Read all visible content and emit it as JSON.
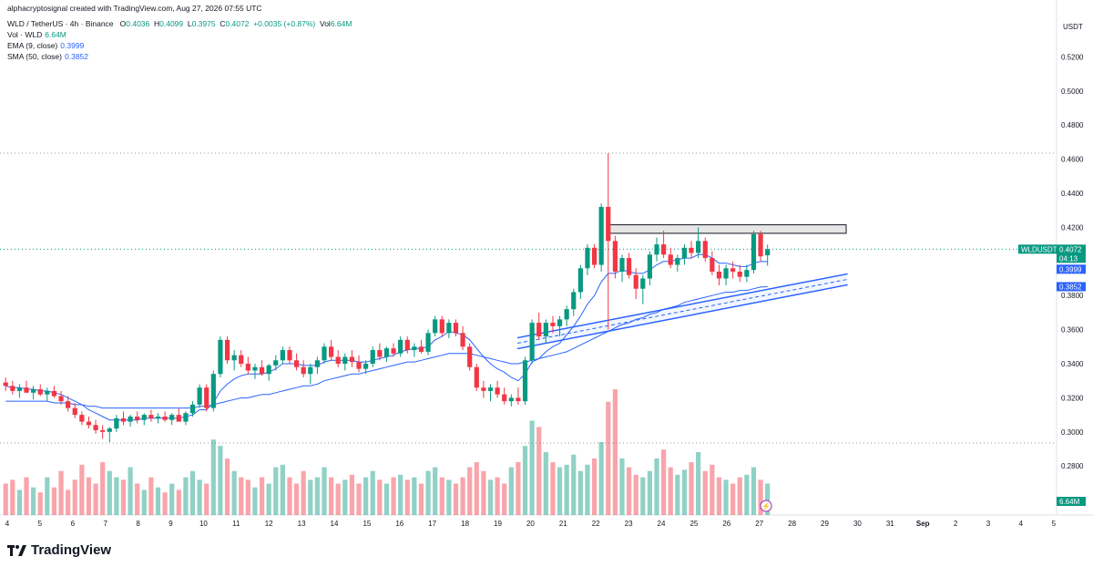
{
  "header": {
    "credit": "alphacryptosignal created with TradingView.com, Aug 27, 2026 07:55 UTC",
    "symbol": "WLD / TetherUS · 4h · Binance",
    "o_label": "O",
    "o": "0.4036",
    "h_label": "H",
    "h": "0.4099",
    "l_label": "L",
    "l": "0.3975",
    "c_label": "C",
    "c": "0.4072",
    "change": "+0.0035 (+0.87%)",
    "vol_label": "Vol",
    "vol": "6.64M",
    "vol_line_label": "Vol · WLD",
    "vol_line_value": "6.64M",
    "ema_label": "EMA (9, close)",
    "ema_value": "0.3999",
    "sma_label": "SMA (50, close)",
    "sma_value": "0.3852"
  },
  "brand": {
    "name": "TradingView"
  },
  "chart_data": {
    "type": "candlestick",
    "symbol": "WLDUSDT",
    "currency": "USDT",
    "y_ticks": [
      "0.5200",
      "0.5000",
      "0.4800",
      "0.4600",
      "0.4400",
      "0.4200",
      "0.3800",
      "0.3600",
      "0.3400",
      "0.3200",
      "0.3000",
      "0.2800"
    ],
    "ylim": [
      0.27,
      0.53
    ],
    "x_ticks": [
      "4",
      "5",
      "6",
      "7",
      "8",
      "9",
      "10",
      "11",
      "12",
      "13",
      "14",
      "15",
      "16",
      "17",
      "18",
      "19",
      "20",
      "21",
      "22",
      "23",
      "24",
      "25",
      "26",
      "27",
      "28",
      "29",
      "30",
      "31",
      "Sep",
      "2",
      "3",
      "4",
      "5"
    ],
    "price_badges": {
      "last": {
        "symbol": "WLDUSDT",
        "value": "0.4072",
        "countdown": "04:13"
      },
      "ema": {
        "value": "0.3999"
      },
      "sma": {
        "value": "0.3852"
      },
      "volume": {
        "value": "6.64M"
      }
    },
    "horizontal_levels": [
      0.4635,
      0.2935,
      0.4072
    ],
    "resistance_zone": [
      0.4165,
      0.4215
    ],
    "trend_channel": {
      "start_day": 19.6,
      "end_day": 29.7,
      "start_price": 0.352,
      "end_price": 0.3895
    },
    "candles": [
      [
        0.329,
        0.332,
        0.324,
        0.327
      ],
      [
        0.327,
        0.33,
        0.322,
        0.324
      ],
      [
        0.324,
        0.328,
        0.32,
        0.326
      ],
      [
        0.326,
        0.33,
        0.323,
        0.323
      ],
      [
        0.323,
        0.327,
        0.319,
        0.325
      ],
      [
        0.325,
        0.328,
        0.321,
        0.322
      ],
      [
        0.322,
        0.326,
        0.318,
        0.324
      ],
      [
        0.324,
        0.327,
        0.32,
        0.321
      ],
      [
        0.321,
        0.324,
        0.316,
        0.318
      ],
      [
        0.318,
        0.321,
        0.312,
        0.314
      ],
      [
        0.314,
        0.317,
        0.308,
        0.31
      ],
      [
        0.31,
        0.312,
        0.304,
        0.306
      ],
      [
        0.306,
        0.309,
        0.302,
        0.304
      ],
      [
        0.304,
        0.307,
        0.299,
        0.301
      ],
      [
        0.301,
        0.304,
        0.296,
        0.3
      ],
      [
        0.3,
        0.303,
        0.294,
        0.302
      ],
      [
        0.302,
        0.31,
        0.3,
        0.308
      ],
      [
        0.308,
        0.312,
        0.304,
        0.306
      ],
      [
        0.306,
        0.31,
        0.303,
        0.309
      ],
      [
        0.309,
        0.312,
        0.305,
        0.307
      ],
      [
        0.307,
        0.311,
        0.304,
        0.31
      ],
      [
        0.31,
        0.313,
        0.306,
        0.308
      ],
      [
        0.308,
        0.311,
        0.305,
        0.309
      ],
      [
        0.309,
        0.312,
        0.306,
        0.307
      ],
      [
        0.307,
        0.311,
        0.304,
        0.31
      ],
      [
        0.31,
        0.314,
        0.307,
        0.306
      ],
      [
        0.306,
        0.312,
        0.304,
        0.311
      ],
      [
        0.311,
        0.318,
        0.309,
        0.316
      ],
      [
        0.316,
        0.328,
        0.314,
        0.326
      ],
      [
        0.326,
        0.328,
        0.312,
        0.314
      ],
      [
        0.314,
        0.336,
        0.312,
        0.334
      ],
      [
        0.334,
        0.356,
        0.332,
        0.354
      ],
      [
        0.354,
        0.356,
        0.34,
        0.342
      ],
      [
        0.342,
        0.348,
        0.336,
        0.345
      ],
      [
        0.345,
        0.348,
        0.338,
        0.34
      ],
      [
        0.34,
        0.344,
        0.334,
        0.336
      ],
      [
        0.336,
        0.34,
        0.331,
        0.338
      ],
      [
        0.338,
        0.342,
        0.333,
        0.334
      ],
      [
        0.334,
        0.34,
        0.33,
        0.339
      ],
      [
        0.339,
        0.345,
        0.336,
        0.342
      ],
      [
        0.342,
        0.35,
        0.34,
        0.348
      ],
      [
        0.348,
        0.35,
        0.34,
        0.342
      ],
      [
        0.342,
        0.346,
        0.336,
        0.338
      ],
      [
        0.338,
        0.342,
        0.332,
        0.334
      ],
      [
        0.334,
        0.34,
        0.328,
        0.338
      ],
      [
        0.338,
        0.344,
        0.334,
        0.342
      ],
      [
        0.342,
        0.352,
        0.34,
        0.35
      ],
      [
        0.35,
        0.354,
        0.342,
        0.344
      ],
      [
        0.344,
        0.348,
        0.338,
        0.34
      ],
      [
        0.34,
        0.346,
        0.336,
        0.344
      ],
      [
        0.344,
        0.348,
        0.338,
        0.341
      ],
      [
        0.341,
        0.345,
        0.335,
        0.337
      ],
      [
        0.337,
        0.342,
        0.334,
        0.34
      ],
      [
        0.34,
        0.35,
        0.338,
        0.348
      ],
      [
        0.348,
        0.352,
        0.342,
        0.344
      ],
      [
        0.344,
        0.35,
        0.341,
        0.349
      ],
      [
        0.349,
        0.352,
        0.344,
        0.346
      ],
      [
        0.346,
        0.356,
        0.344,
        0.354
      ],
      [
        0.354,
        0.356,
        0.346,
        0.348
      ],
      [
        0.348,
        0.352,
        0.344,
        0.35
      ],
      [
        0.35,
        0.354,
        0.346,
        0.347
      ],
      [
        0.347,
        0.36,
        0.345,
        0.358
      ],
      [
        0.358,
        0.368,
        0.356,
        0.366
      ],
      [
        0.366,
        0.368,
        0.356,
        0.358
      ],
      [
        0.358,
        0.366,
        0.355,
        0.364
      ],
      [
        0.364,
        0.366,
        0.356,
        0.358
      ],
      [
        0.358,
        0.362,
        0.348,
        0.35
      ],
      [
        0.35,
        0.352,
        0.336,
        0.338
      ],
      [
        0.338,
        0.34,
        0.324,
        0.326
      ],
      [
        0.326,
        0.33,
        0.32,
        0.324
      ],
      [
        0.324,
        0.328,
        0.318,
        0.326
      ],
      [
        0.326,
        0.33,
        0.32,
        0.322
      ],
      [
        0.322,
        0.326,
        0.316,
        0.318
      ],
      [
        0.318,
        0.322,
        0.315,
        0.32
      ],
      [
        0.32,
        0.326,
        0.316,
        0.318
      ],
      [
        0.318,
        0.344,
        0.316,
        0.342
      ],
      [
        0.342,
        0.366,
        0.34,
        0.364
      ],
      [
        0.364,
        0.37,
        0.354,
        0.356
      ],
      [
        0.356,
        0.366,
        0.352,
        0.364
      ],
      [
        0.364,
        0.368,
        0.358,
        0.362
      ],
      [
        0.362,
        0.368,
        0.356,
        0.366
      ],
      [
        0.366,
        0.374,
        0.362,
        0.372
      ],
      [
        0.372,
        0.384,
        0.368,
        0.382
      ],
      [
        0.382,
        0.398,
        0.378,
        0.396
      ],
      [
        0.396,
        0.41,
        0.392,
        0.408
      ],
      [
        0.408,
        0.41,
        0.396,
        0.398
      ],
      [
        0.398,
        0.434,
        0.394,
        0.432
      ],
      [
        0.432,
        0.4635,
        0.36,
        0.412
      ],
      [
        0.412,
        0.415,
        0.39,
        0.394
      ],
      [
        0.394,
        0.404,
        0.388,
        0.402
      ],
      [
        0.402,
        0.405,
        0.39,
        0.392
      ],
      [
        0.392,
        0.396,
        0.378,
        0.384
      ],
      [
        0.384,
        0.392,
        0.375,
        0.39
      ],
      [
        0.39,
        0.406,
        0.386,
        0.404
      ],
      [
        0.404,
        0.414,
        0.4,
        0.41
      ],
      [
        0.41,
        0.418,
        0.402,
        0.404
      ],
      [
        0.404,
        0.408,
        0.396,
        0.398
      ],
      [
        0.398,
        0.404,
        0.394,
        0.402
      ],
      [
        0.402,
        0.41,
        0.398,
        0.408
      ],
      [
        0.408,
        0.412,
        0.402,
        0.405
      ],
      [
        0.405,
        0.42,
        0.402,
        0.412
      ],
      [
        0.412,
        0.414,
        0.4,
        0.402
      ],
      [
        0.402,
        0.406,
        0.392,
        0.394
      ],
      [
        0.394,
        0.398,
        0.386,
        0.39
      ],
      [
        0.39,
        0.398,
        0.386,
        0.396
      ],
      [
        0.396,
        0.4,
        0.39,
        0.394
      ],
      [
        0.394,
        0.398,
        0.388,
        0.391
      ],
      [
        0.391,
        0.398,
        0.388,
        0.395
      ],
      [
        0.395,
        0.418,
        0.393,
        0.416
      ],
      [
        0.416,
        0.418,
        0.4,
        0.403
      ],
      [
        0.4036,
        0.4099,
        0.3975,
        0.4072
      ]
    ],
    "ema_9": [
      0.327,
      0.326,
      0.326,
      0.325,
      0.325,
      0.324,
      0.324,
      0.323,
      0.322,
      0.32,
      0.318,
      0.316,
      0.313,
      0.311,
      0.309,
      0.307,
      0.307,
      0.307,
      0.307,
      0.307,
      0.308,
      0.308,
      0.308,
      0.308,
      0.308,
      0.308,
      0.309,
      0.31,
      0.313,
      0.313,
      0.317,
      0.324,
      0.328,
      0.331,
      0.333,
      0.334,
      0.334,
      0.334,
      0.335,
      0.337,
      0.34,
      0.34,
      0.34,
      0.339,
      0.339,
      0.339,
      0.341,
      0.342,
      0.342,
      0.342,
      0.342,
      0.341,
      0.341,
      0.342,
      0.343,
      0.344,
      0.345,
      0.347,
      0.348,
      0.349,
      0.349,
      0.35,
      0.354,
      0.356,
      0.359,
      0.358,
      0.357,
      0.354,
      0.349,
      0.344,
      0.34,
      0.337,
      0.335,
      0.332,
      0.33,
      0.334,
      0.341,
      0.343,
      0.347,
      0.35,
      0.352,
      0.357,
      0.362,
      0.368,
      0.375,
      0.38,
      0.388,
      0.393,
      0.393,
      0.395,
      0.394,
      0.393,
      0.393,
      0.395,
      0.398,
      0.4,
      0.4,
      0.401,
      0.402,
      0.402,
      0.404,
      0.404,
      0.402,
      0.399,
      0.399,
      0.398,
      0.397,
      0.397,
      0.399,
      0.4,
      0.3999
    ],
    "sma_50": [
      0.318,
      0.318,
      0.318,
      0.318,
      0.318,
      0.318,
      0.318,
      0.317,
      0.317,
      0.317,
      0.316,
      0.316,
      0.315,
      0.315,
      0.314,
      0.314,
      0.314,
      0.314,
      0.314,
      0.314,
      0.314,
      0.314,
      0.314,
      0.314,
      0.314,
      0.314,
      0.314,
      0.314,
      0.315,
      0.315,
      0.316,
      0.317,
      0.318,
      0.319,
      0.32,
      0.32,
      0.321,
      0.322,
      0.322,
      0.323,
      0.324,
      0.325,
      0.326,
      0.327,
      0.327,
      0.328,
      0.33,
      0.331,
      0.332,
      0.333,
      0.334,
      0.334,
      0.335,
      0.336,
      0.337,
      0.338,
      0.339,
      0.34,
      0.341,
      0.341,
      0.342,
      0.343,
      0.344,
      0.345,
      0.346,
      0.346,
      0.346,
      0.346,
      0.345,
      0.344,
      0.343,
      0.342,
      0.341,
      0.34,
      0.34,
      0.341,
      0.342,
      0.343,
      0.344,
      0.345,
      0.346,
      0.347,
      0.349,
      0.351,
      0.353,
      0.355,
      0.357,
      0.359,
      0.361,
      0.363,
      0.364,
      0.366,
      0.367,
      0.369,
      0.37,
      0.372,
      0.373,
      0.374,
      0.376,
      0.377,
      0.378,
      0.379,
      0.38,
      0.381,
      0.382,
      0.382,
      0.383,
      0.383,
      0.384,
      0.385,
      0.3852
    ],
    "volume_rel": [
      0.25,
      0.28,
      0.2,
      0.3,
      0.22,
      0.18,
      0.3,
      0.22,
      0.35,
      0.2,
      0.28,
      0.4,
      0.3,
      0.25,
      0.42,
      0.35,
      0.3,
      0.28,
      0.38,
      0.25,
      0.2,
      0.3,
      0.22,
      0.18,
      0.25,
      0.2,
      0.3,
      0.35,
      0.28,
      0.25,
      0.6,
      0.55,
      0.45,
      0.35,
      0.3,
      0.28,
      0.22,
      0.3,
      0.25,
      0.38,
      0.4,
      0.3,
      0.25,
      0.35,
      0.28,
      0.3,
      0.38,
      0.3,
      0.25,
      0.28,
      0.32,
      0.25,
      0.3,
      0.35,
      0.28,
      0.25,
      0.3,
      0.32,
      0.28,
      0.3,
      0.25,
      0.35,
      0.38,
      0.3,
      0.28,
      0.25,
      0.3,
      0.38,
      0.42,
      0.35,
      0.28,
      0.3,
      0.25,
      0.38,
      0.42,
      0.55,
      0.75,
      0.7,
      0.5,
      0.42,
      0.38,
      0.4,
      0.48,
      0.35,
      0.4,
      0.45,
      0.58,
      0.9,
      1.0,
      0.45,
      0.38,
      0.32,
      0.3,
      0.35,
      0.45,
      0.52,
      0.38,
      0.32,
      0.36,
      0.42,
      0.5,
      0.35,
      0.4,
      0.3,
      0.28,
      0.25,
      0.3,
      0.32,
      0.38,
      0.28,
      0.25
    ]
  }
}
